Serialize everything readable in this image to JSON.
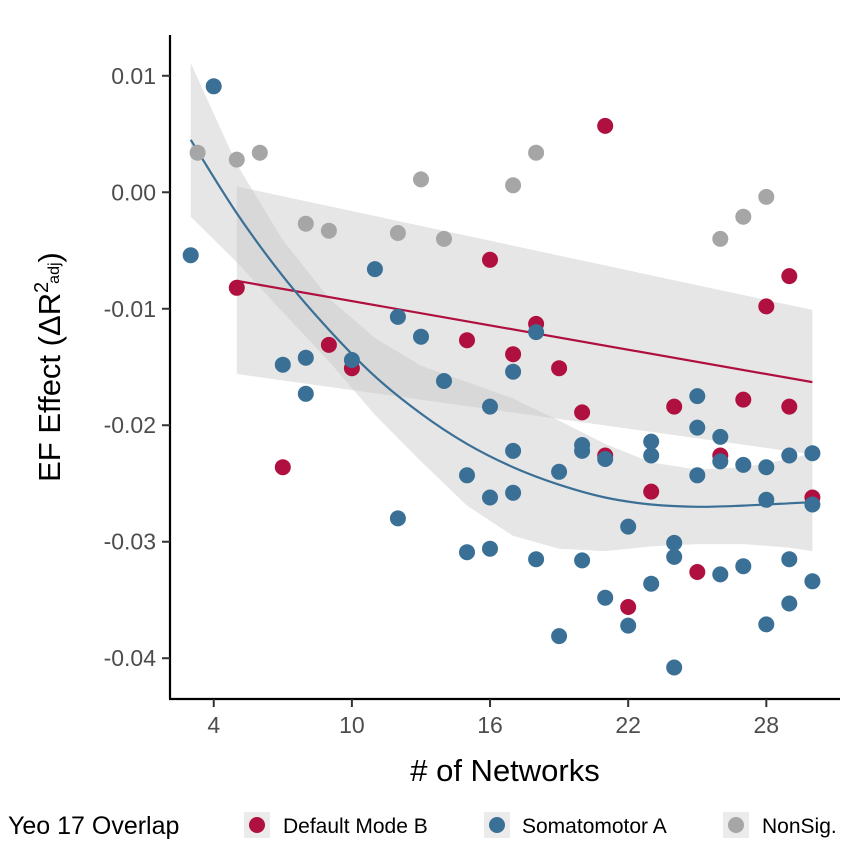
{
  "chart_data": {
    "type": "scatter",
    "xlabel": "# of Networks",
    "ylabel": {
      "main": "EF Effect (ΔR",
      "sup": "2",
      "sub": "adj",
      "close": ")"
    },
    "xlim": [
      2.1,
      31.2
    ],
    "ylim": [
      -0.0435,
      0.0135
    ],
    "xticks": [
      {
        "value": 4,
        "label": "4"
      },
      {
        "value": 10,
        "label": "10"
      },
      {
        "value": 16,
        "label": "16"
      },
      {
        "value": 22,
        "label": "22"
      },
      {
        "value": 28,
        "label": "28"
      }
    ],
    "yticks": [
      {
        "value": 0.01,
        "label": "0.01"
      },
      {
        "value": 0.0,
        "label": "0.00"
      },
      {
        "value": -0.01,
        "label": "-0.01"
      },
      {
        "value": -0.02,
        "label": "-0.02"
      },
      {
        "value": -0.03,
        "label": "-0.03"
      },
      {
        "value": -0.04,
        "label": "-0.04"
      }
    ],
    "grid": false,
    "legend": {
      "position": "bottom",
      "title": "Yeo 17 Overlap",
      "entries": [
        "Default Mode B",
        "Somatomotor A",
        "NonSig."
      ]
    },
    "series": [
      {
        "name": "Default Mode B",
        "color": "#b0103f",
        "points": [
          [
            5,
            -0.0082
          ],
          [
            7,
            -0.0236
          ],
          [
            9,
            -0.0131
          ],
          [
            10,
            -0.0151
          ],
          [
            15,
            -0.0127
          ],
          [
            16,
            -0.0058
          ],
          [
            17,
            -0.0139
          ],
          [
            18,
            -0.0113
          ],
          [
            19,
            -0.0151
          ],
          [
            20,
            -0.0189
          ],
          [
            21,
            0.0057
          ],
          [
            21,
            -0.0226
          ],
          [
            22,
            -0.0356
          ],
          [
            23,
            -0.0257
          ],
          [
            24,
            -0.0184
          ],
          [
            25,
            -0.0326
          ],
          [
            26,
            -0.0226
          ],
          [
            27,
            -0.0178
          ],
          [
            28,
            -0.0098
          ],
          [
            29,
            -0.0072
          ],
          [
            29,
            -0.0184
          ],
          [
            30,
            -0.0262
          ]
        ],
        "fit": {
          "x": [
            5,
            30
          ],
          "y": [
            -0.0076,
            -0.0163
          ],
          "ci_upper": [
            0.0005,
            -0.0101
          ],
          "ci_lower": [
            -0.0156,
            -0.0225
          ]
        }
      },
      {
        "name": "Somatomotor A",
        "color": "#3a6f96",
        "points": [
          [
            3,
            -0.0054
          ],
          [
            4,
            0.0091
          ],
          [
            7,
            -0.0148
          ],
          [
            8,
            -0.0142
          ],
          [
            8,
            -0.0173
          ],
          [
            10,
            -0.0144
          ],
          [
            11,
            -0.0066
          ],
          [
            12,
            -0.0107
          ],
          [
            12,
            -0.028
          ],
          [
            13,
            -0.0124
          ],
          [
            14,
            -0.0162
          ],
          [
            15,
            -0.0243
          ],
          [
            15,
            -0.0309
          ],
          [
            16,
            -0.0184
          ],
          [
            16,
            -0.0262
          ],
          [
            16,
            -0.0306
          ],
          [
            17,
            -0.0154
          ],
          [
            17,
            -0.0222
          ],
          [
            17,
            -0.0258
          ],
          [
            18,
            -0.012
          ],
          [
            18,
            -0.0315
          ],
          [
            19,
            -0.024
          ],
          [
            19,
            -0.0381
          ],
          [
            20,
            -0.0217
          ],
          [
            20,
            -0.0222
          ],
          [
            20,
            -0.0316
          ],
          [
            21,
            -0.0229
          ],
          [
            21,
            -0.0348
          ],
          [
            22,
            -0.0287
          ],
          [
            22,
            -0.0372
          ],
          [
            23,
            -0.0214
          ],
          [
            23,
            -0.0226
          ],
          [
            23,
            -0.0336
          ],
          [
            24,
            -0.0301
          ],
          [
            24,
            -0.0313
          ],
          [
            24,
            -0.0408
          ],
          [
            25,
            -0.0175
          ],
          [
            25,
            -0.0202
          ],
          [
            25,
            -0.0243
          ],
          [
            26,
            -0.021
          ],
          [
            26,
            -0.0231
          ],
          [
            26,
            -0.0328
          ],
          [
            27,
            -0.0234
          ],
          [
            27,
            -0.0321
          ],
          [
            28,
            -0.0236
          ],
          [
            28,
            -0.0264
          ],
          [
            28,
            -0.0371
          ],
          [
            29,
            -0.0226
          ],
          [
            29,
            -0.0315
          ],
          [
            29,
            -0.0353
          ],
          [
            30,
            -0.0224
          ],
          [
            30,
            -0.0268
          ],
          [
            30,
            -0.0334
          ]
        ],
        "fit": {
          "x": [
            3,
            5,
            7,
            9,
            11,
            13,
            15,
            17,
            19,
            21,
            23,
            25,
            27,
            29,
            30
          ],
          "y": [
            0.0045,
            -0.0018,
            -0.0072,
            -0.0118,
            -0.0158,
            -0.019,
            -0.0216,
            -0.0236,
            -0.0251,
            -0.0262,
            -0.0268,
            -0.027,
            -0.0269,
            -0.0267,
            -0.0266
          ],
          "ci_upper": [
            0.0111,
            0.0024,
            -0.0041,
            -0.0091,
            -0.0125,
            -0.0149,
            -0.0163,
            -0.0177,
            -0.0196,
            -0.0216,
            -0.0232,
            -0.0238,
            -0.0236,
            -0.0229,
            -0.0224
          ],
          "ci_lower": [
            -0.0021,
            -0.006,
            -0.0103,
            -0.0145,
            -0.0191,
            -0.0231,
            -0.0269,
            -0.0295,
            -0.0306,
            -0.0308,
            -0.0304,
            -0.0302,
            -0.0302,
            -0.0305,
            -0.0308
          ]
        }
      },
      {
        "name": "NonSig.",
        "color": "#a6a6a6",
        "points": [
          [
            3.3,
            0.0034
          ],
          [
            5,
            0.0028
          ],
          [
            6,
            0.0034
          ],
          [
            8,
            -0.0027
          ],
          [
            9,
            -0.0033
          ],
          [
            12,
            -0.0035
          ],
          [
            13,
            0.0011
          ],
          [
            14,
            -0.004
          ],
          [
            17,
            0.0006
          ],
          [
            18,
            0.0034
          ],
          [
            26,
            -0.004
          ],
          [
            27,
            -0.0021
          ],
          [
            28,
            -0.0004
          ]
        ]
      }
    ]
  }
}
